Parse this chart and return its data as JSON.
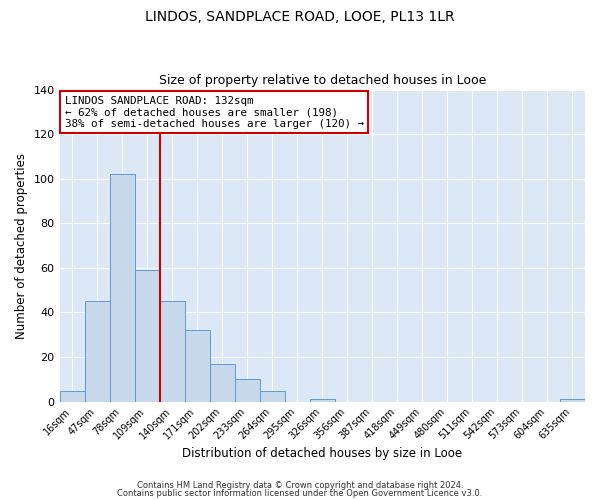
{
  "title": "LINDOS, SANDPLACE ROAD, LOOE, PL13 1LR",
  "subtitle": "Size of property relative to detached houses in Looe",
  "xlabel": "Distribution of detached houses by size in Looe",
  "ylabel": "Number of detached properties",
  "bin_labels": [
    "16sqm",
    "47sqm",
    "78sqm",
    "109sqm",
    "140sqm",
    "171sqm",
    "202sqm",
    "233sqm",
    "264sqm",
    "295sqm",
    "326sqm",
    "356sqm",
    "387sqm",
    "418sqm",
    "449sqm",
    "480sqm",
    "511sqm",
    "542sqm",
    "573sqm",
    "604sqm",
    "635sqm"
  ],
  "bar_heights": [
    5,
    45,
    102,
    59,
    45,
    32,
    17,
    10,
    5,
    0,
    1,
    0,
    0,
    0,
    0,
    0,
    0,
    0,
    0,
    0,
    1
  ],
  "bar_color": "#c8d9ec",
  "bar_edge_color": "#5b9bd5",
  "background_color": "#dce8f5",
  "grid_color": "#b8cde0",
  "ylim": [
    0,
    140
  ],
  "yticks": [
    0,
    20,
    40,
    60,
    80,
    100,
    120,
    140
  ],
  "vline_color": "#cc0000",
  "annotation_text": "LINDOS SANDPLACE ROAD: 132sqm\n← 62% of detached houses are smaller (198)\n38% of semi-detached houses are larger (120) →",
  "annotation_box_color": "#ffffff",
  "annotation_box_edge": "#cc0000",
  "footer1": "Contains HM Land Registry data © Crown copyright and database right 2024.",
  "footer2": "Contains public sector information licensed under the Open Government Licence v3.0."
}
